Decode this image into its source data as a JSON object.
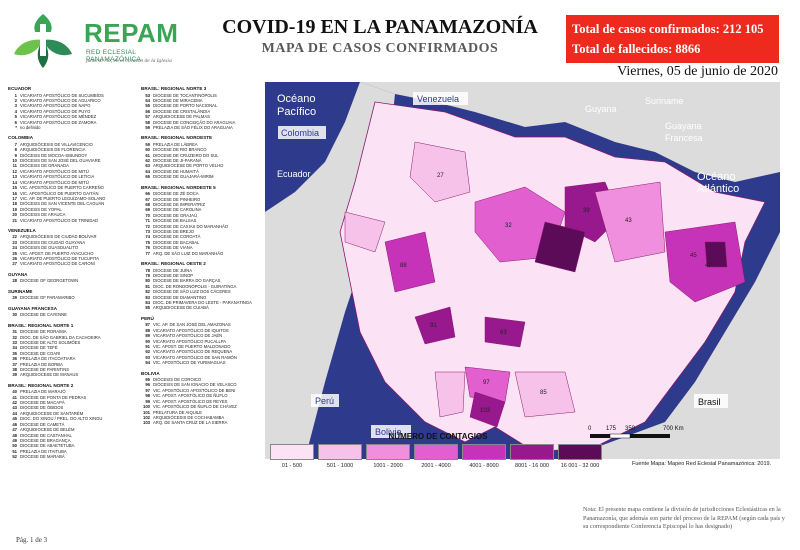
{
  "brand": {
    "name": "REPAM",
    "subtitle": "RED ECLESIAL PANAMAZÓNICA",
    "motto": "junto al río, en el corazón de la Iglesia"
  },
  "header": {
    "title": "COVID-19 EN LA PANAMAZONÍA",
    "subtitle": "MAPA DE CASOS CONFIRMADOS",
    "date": "Viernes, 05 de junio de 2020"
  },
  "stats": {
    "cases": "Total de casos confirmados: 212 105",
    "deaths": "Total de fallecidos: 8866"
  },
  "jurisdictions": {
    "column1": [
      {
        "group": "ECUADOR",
        "items": [
          {
            "n": "1",
            "name": "VICARIATO APOSTÓLICO DE SUCUMBÍOS"
          },
          {
            "n": "2",
            "name": "VICARIATO APOSTÓLICO DE AGUARICO"
          },
          {
            "n": "3",
            "name": "VICARIATO APOSTÓLICO DE NAPO"
          },
          {
            "n": "4",
            "name": "VICARIATO APOSTÓLICO DE PUYO"
          },
          {
            "n": "5",
            "name": "VICARIATO APOSTÓLICO DE MÉNDEZ"
          },
          {
            "n": "6",
            "name": "VICARIATO APOSTÓLICO DE ZAMORA"
          },
          {
            "n": "*",
            "name": "no definido"
          }
        ]
      },
      {
        "group": "COLOMBIA",
        "items": [
          {
            "n": "7",
            "name": "ARQUIDIÓCESIS DE VILLAVICENCIO"
          },
          {
            "n": "8",
            "name": "ARQUIDIÓCESIS DE FLORENCIA"
          },
          {
            "n": "9",
            "name": "DIÓCESIS DE MOCOA-SIBUNDOY"
          },
          {
            "n": "10",
            "name": "DIÓCESIS DE SAN JOSÉ DEL GUAVIARE"
          },
          {
            "n": "11",
            "name": "DIÓCESIS DE GRANADA"
          },
          {
            "n": "12",
            "name": "VICARIATO APOSTÓLICO DE MITÚ"
          },
          {
            "n": "13",
            "name": "VICARIATO APOSTÓLICO DE LETICIA"
          },
          {
            "n": "14",
            "name": "VICARIATO APOSTÓLICO DE MITÚ"
          },
          {
            "n": "15",
            "name": "VIC. APOSTÓLICO DE PUERTO CARREÑO"
          },
          {
            "n": "16",
            "name": "VIC. APOSTÓLICO DE PUERTO GAITÁN"
          },
          {
            "n": "17",
            "name": "VIC. AP. DE PUERTO LEGUÍZAMO-SOLANO"
          },
          {
            "n": "18",
            "name": "DIÓCESIS DE SAN VICENTE DEL CAGUÁN"
          },
          {
            "n": "19",
            "name": "DIÓCESIS DE YOPAL"
          },
          {
            "n": "20",
            "name": "DIÓCESIS DE ARAUCA"
          },
          {
            "n": "21",
            "name": "VICARIATO APOSTÓLICO DE TRINIDAD"
          }
        ]
      },
      {
        "group": "VENEZUELA",
        "items": [
          {
            "n": "22",
            "name": "ARQUIDIÓCESIS DE CIUDAD BOLÍVAR"
          },
          {
            "n": "23",
            "name": "DIÓCESIS DE CIUDAD GUAYANA"
          },
          {
            "n": "24",
            "name": "DIÓCESIS DE GUASDUALITO"
          },
          {
            "n": "25",
            "name": "VIC. APOST. DE PUERTO AYACUCHO"
          },
          {
            "n": "26",
            "name": "VICARIATO APOSTÓLICO DE TUCUPITA"
          },
          {
            "n": "27",
            "name": "VICARIATO APOSTÓLICO DE CARONÍ"
          }
        ]
      },
      {
        "group": "GUYANA",
        "items": [
          {
            "n": "28",
            "name": "DIOCESE OF GEORGETOWN"
          }
        ]
      },
      {
        "group": "SURINAME",
        "items": [
          {
            "n": "29",
            "name": "DIOCESE OF PARAMARIBO"
          }
        ]
      },
      {
        "group": "GUAYANA FRANCESA",
        "items": [
          {
            "n": "30",
            "name": "DIOCESE DE CAYENNE"
          }
        ]
      },
      {
        "group": "BRASIL: REGIONAL NORTE 1",
        "items": [
          {
            "n": "31",
            "name": "DIOCESE DE RORAIMA"
          },
          {
            "n": "32",
            "name": "DIOC. DE SÃO GABRIEL DA CACHOEIRA"
          },
          {
            "n": "33",
            "name": "DIOCESE DE ALTO SOLIMÕES"
          },
          {
            "n": "34",
            "name": "DIOCESE DE TEFÉ"
          },
          {
            "n": "35",
            "name": "DIOCESE DE COARI"
          },
          {
            "n": "36",
            "name": "PRELAZIA DE ITACOATIARA"
          },
          {
            "n": "37",
            "name": "PRELAZIA DE BORBA"
          },
          {
            "n": "38",
            "name": "DIOCESE DE PARINTINS"
          },
          {
            "n": "39",
            "name": "ARQUIDIOCESE DE MANAUS"
          }
        ]
      },
      {
        "group": "BRASIL: REGIONAL NORTE 2",
        "items": [
          {
            "n": "40",
            "name": "PRELAZIA DE MARAJÓ"
          },
          {
            "n": "41",
            "name": "DIOCESE DE PONTA DE PEDRAS"
          },
          {
            "n": "42",
            "name": "DIOCESE DE MACAPÁ"
          },
          {
            "n": "43",
            "name": "DIOCESE DE ÓBIDOS"
          },
          {
            "n": "44",
            "name": "ARQUIDIOCESE DE SANTARÉM"
          },
          {
            "n": "45",
            "name": "DIOC. DO XINGU / PREL. DO ALTO XINGU"
          },
          {
            "n": "46",
            "name": "DIOCESE DE CAMETÁ"
          },
          {
            "n": "47",
            "name": "ARQUIDIOCESE DE BELÉM"
          },
          {
            "n": "48",
            "name": "DIOCESE DE CASTANHAL"
          },
          {
            "n": "49",
            "name": "DIOCESE DE BRAGANÇA"
          },
          {
            "n": "50",
            "name": "DIOCESE DE ABAETETUBA"
          },
          {
            "n": "51",
            "name": "PRELAZIA DE ITAITUBA"
          },
          {
            "n": "52",
            "name": "DIOCESE DE MARABÁ"
          }
        ]
      }
    ],
    "column2": [
      {
        "group": "BRASIL: REGIONAL NORTE 3",
        "items": [
          {
            "n": "53",
            "name": "DIOCESE DE TOCANTINÓPOLIS"
          },
          {
            "n": "54",
            "name": "DIOCESE DE MIRACEMA"
          },
          {
            "n": "55",
            "name": "DIOCESE DE PORTO NACIONAL"
          },
          {
            "n": "56",
            "name": "DIOCESE DE CRISTALÂNDIA"
          },
          {
            "n": "57",
            "name": "ARQUIDIOCESE DE PALMAS"
          },
          {
            "n": "58",
            "name": "DIOCESE DE CONCEIÇÃO DO ARAGUAIA"
          },
          {
            "n": "59",
            "name": "PRELAZIA DE SÃO FÉLIX DO ARAGUAIA"
          }
        ]
      },
      {
        "group": "BRASIL: REGIONAL NOROESTE",
        "items": [
          {
            "n": "59",
            "name": "PRELAZIA DE LÁBREA"
          },
          {
            "n": "60",
            "name": "DIOCESE DE RIO BRANCO"
          },
          {
            "n": "61",
            "name": "DIOCESE DE CRUZEIRO DO SUL"
          },
          {
            "n": "62",
            "name": "DIOCESE DE JI-PARANÁ"
          },
          {
            "n": "63",
            "name": "ARQUIDIOCESE DE PORTO VELHO"
          },
          {
            "n": "64",
            "name": "DIOCESE DE HUMAITÁ"
          },
          {
            "n": "65",
            "name": "DIOCESE DE GUAJARÁ-MIRIM"
          }
        ]
      },
      {
        "group": "BRASIL: REGIONAL NORDESTE 5",
        "items": [
          {
            "n": "66",
            "name": "DIOCESE DE ZÉ DOCA"
          },
          {
            "n": "67",
            "name": "DIOCESE DE PINHEIRO"
          },
          {
            "n": "68",
            "name": "DIOCESE DE IMPERATRIZ"
          },
          {
            "n": "69",
            "name": "DIOCESE DE CAROLINA"
          },
          {
            "n": "70",
            "name": "DIOCESE DE GRAJAÚ"
          },
          {
            "n": "71",
            "name": "DIOCESE DE BALSAS"
          },
          {
            "n": "72",
            "name": "DIOCESE DE CAXIAS DO MARANHÃO"
          },
          {
            "n": "73",
            "name": "DIOCESE DE BREJO"
          },
          {
            "n": "74",
            "name": "DIOCESE DE COROATÁ"
          },
          {
            "n": "75",
            "name": "DIOCESE DE BACABAL"
          },
          {
            "n": "76",
            "name": "DIOCESE DE VIANA"
          },
          {
            "n": "77",
            "name": "ARQ. DE SÃO LUIZ DO MARANHÃO"
          }
        ]
      },
      {
        "group": "BRASIL: REGIONAL OESTE 2",
        "items": [
          {
            "n": "78",
            "name": "DIOCESE DE JUÍNA"
          },
          {
            "n": "79",
            "name": "DIOCESE DE SINOP"
          },
          {
            "n": "80",
            "name": "DIOCESE DE BARRA DO GARÇAS"
          },
          {
            "n": "81",
            "name": "DIOC. DE RONDONÓPOLIS - GUIRATINGA"
          },
          {
            "n": "82",
            "name": "DIOCESE DE SÃO LUIZ DOS CÁCERES"
          },
          {
            "n": "83",
            "name": "DIOCESE DE DIAMANTINO"
          },
          {
            "n": "84",
            "name": "DIOC. DE PRIMAVERA DO LESTE - PARANATINGA"
          },
          {
            "n": "85",
            "name": "ARQUIDIOCESE DE CUIABÁ"
          }
        ]
      },
      {
        "group": "PERÚ",
        "items": [
          {
            "n": "87",
            "name": "VIC. AP. DE SAN JOSÉ DEL AMAZONAS"
          },
          {
            "n": "88",
            "name": "VICARIATO APOSTÓLICO DE IQUITOS"
          },
          {
            "n": "89",
            "name": "VICARIATO APOSTÓLICO DE JAÉN"
          },
          {
            "n": "90",
            "name": "VICARIATO APOSTÓLICO PUCALLPA"
          },
          {
            "n": "91",
            "name": "VIC. APOST. DE PUERTO MALDONADO"
          },
          {
            "n": "92",
            "name": "VICARIATO APOSTÓLICO DE REQUENA"
          },
          {
            "n": "93",
            "name": "VICARIATO APOSTÓLICO DE SAN RAMÓN"
          },
          {
            "n": "94",
            "name": "VIC. APOSTÓLICO DE YURIMAGUAS"
          }
        ]
      },
      {
        "group": "BOLIVIA",
        "items": [
          {
            "n": "95",
            "name": "DIÓCESIS DE COROICO"
          },
          {
            "n": "96",
            "name": "DIÓCESIS DE SAN IGNACIO DE VELASCO"
          },
          {
            "n": "97",
            "name": "VIC. APOSTÓLICO APOSTÓLICO DE BENI"
          },
          {
            "n": "98",
            "name": "VIC. APOST. APOSTÓLICO DE ÑUFLO"
          },
          {
            "n": "99",
            "name": "VIC. APOST. APOSTÓLICO DE REYES"
          },
          {
            "n": "100",
            "name": "VIC. APOSTÓLICO DE ÑUFLO DE CHÁVEZ"
          },
          {
            "n": "101",
            "name": "PRELATURA DE AIQUILE"
          },
          {
            "n": "102",
            "name": "ARQUIDIÓCESIS DE COCHABAMBA"
          },
          {
            "n": "103",
            "name": "ARQ. DE SANTA CRUZ DE LA SIERRA"
          }
        ]
      }
    ]
  },
  "map": {
    "labels": {
      "ocean_pacific_1": "Océano",
      "ocean_pacific_2": "Pacífico",
      "ocean_atlantic_1": "Océano",
      "ocean_atlantic_2": "Atlántico",
      "venezuela": "Venezuela",
      "colombia": "Colombia",
      "ecuador": "Ecuador",
      "guyana": "Guyana",
      "suriname": "Suriname",
      "french_guiana_1": "Guayana",
      "french_guiana_2": "Francesa",
      "peru": "Perú",
      "bolivia": "Bolivia",
      "brasil": "Brasil"
    },
    "scale": {
      "ticks": [
        "0",
        "175",
        "350",
        "700 Km"
      ]
    },
    "colors": {
      "ocean": "#2e3a8c",
      "land": "#dcdcdc",
      "border": "#8a1a6a"
    }
  },
  "legend": {
    "title": "NÚMERO DE CONTAGIOS",
    "classes": [
      {
        "label": "01 - 500",
        "color": "#fbe3f5"
      },
      {
        "label": "501 - 1000",
        "color": "#f7c2ea"
      },
      {
        "label": "1001 - 2000",
        "color": "#ef8fdd"
      },
      {
        "label": "2001 - 4000",
        "color": "#e25fcf"
      },
      {
        "label": "4001 - 8000",
        "color": "#c733b8"
      },
      {
        "label": "8001 - 16 000",
        "color": "#98188e"
      },
      {
        "label": "16 001 - 32 000",
        "color": "#5c0b59"
      }
    ]
  },
  "source": "Fuente Mapa: Mapeo Red Eclesial Panamazónica: 2019.",
  "note": "Nota: El presente mapa contiene la división de jurisdicciones Eclesiásticas en la Panamazonía, que además son parte del proceso de la REPAM (según cada país y su correspondiente Conferencia Episcopal lo has designado)",
  "page": "Pág. 1 de 3"
}
